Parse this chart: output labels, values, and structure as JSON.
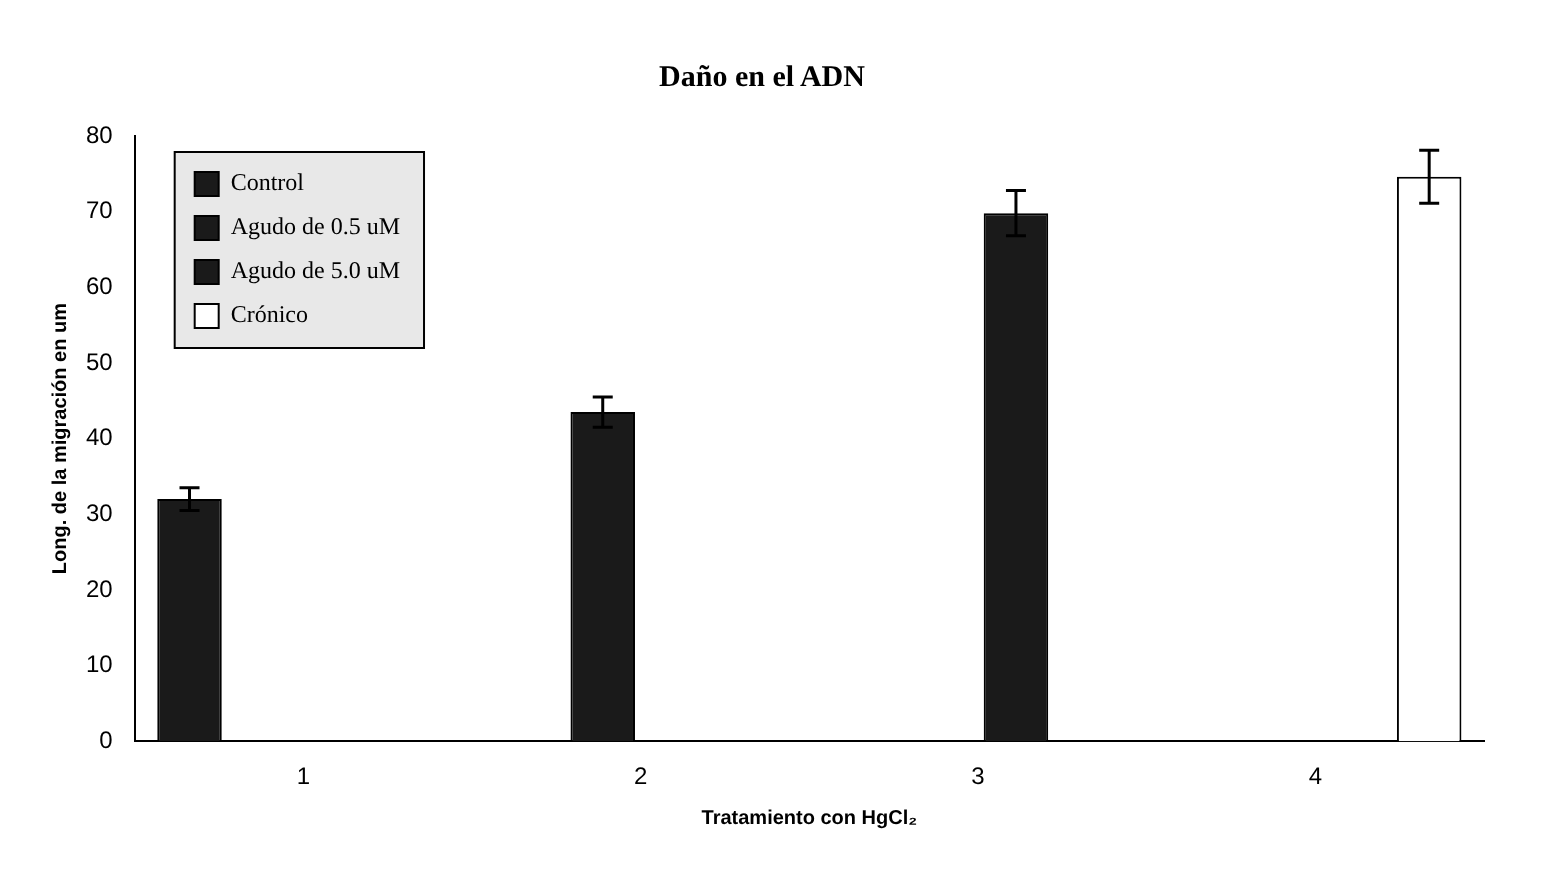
{
  "chart_data": {
    "type": "bar",
    "title": "Daño en el ADN",
    "xlabel": "Tratamiento con HgCl₂",
    "ylabel": "Long. de la migración en um",
    "categories": [
      "1",
      "2",
      "3",
      "4"
    ],
    "series": [
      {
        "name": "Control",
        "color": "#1a1a1a",
        "values": [
          32,
          null,
          null,
          null
        ],
        "errors": [
          1.5,
          null,
          null,
          null
        ]
      },
      {
        "name": "Agudo de 0.5 uM",
        "color": "#1a1a1a",
        "values": [
          null,
          43.5,
          null,
          null
        ],
        "errors": [
          null,
          2,
          null,
          null
        ]
      },
      {
        "name": "Agudo de 5.0 uM",
        "color": "#1a1a1a",
        "values": [
          null,
          null,
          69.8,
          null
        ],
        "errors": [
          null,
          null,
          3,
          null
        ]
      },
      {
        "name": "Crónico",
        "color": "#ffffff",
        "values": [
          null,
          null,
          null,
          74.6
        ],
        "errors": [
          null,
          null,
          null,
          3.5
        ]
      }
    ],
    "ylim": [
      0,
      80
    ],
    "yticks": [
      0,
      10,
      20,
      30,
      40,
      50,
      60,
      70,
      80
    ],
    "grid": false,
    "legend": "top left"
  }
}
